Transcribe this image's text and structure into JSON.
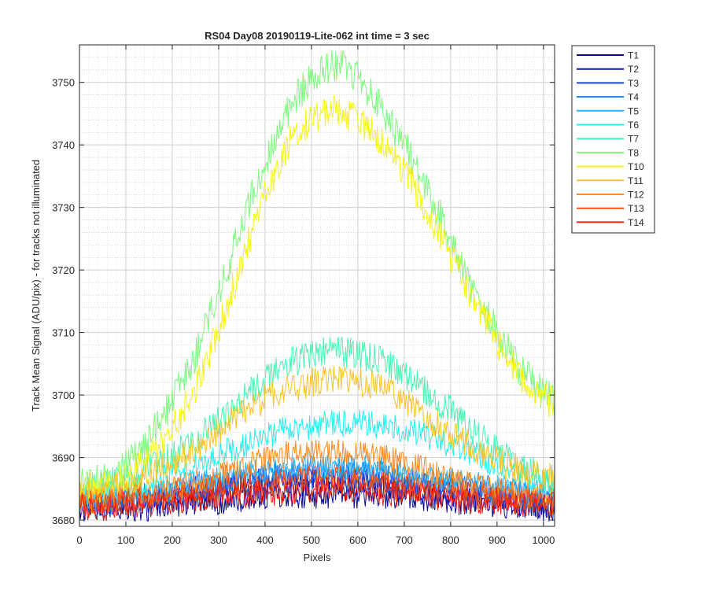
{
  "chart_data": {
    "type": "line",
    "title": "RS04 Day08 20190119-Lite-062 int time = 3 sec",
    "xlabel": "Pixels",
    "ylabel": "Track Mean Signal (ADU/pix) - for tracks not illuminated",
    "xlim": [
      0,
      1024
    ],
    "ylim": [
      3679,
      3756
    ],
    "x_ticks": [
      "0",
      "100",
      "200",
      "300",
      "400",
      "500",
      "600",
      "700",
      "800",
      "900",
      "1000"
    ],
    "y_ticks": [
      "3680",
      "3690",
      "3700",
      "3710",
      "3720",
      "3730",
      "3740",
      "3750"
    ],
    "grid": "major and minor, dotted",
    "legend_position": "outside top-right",
    "x": [
      0,
      50,
      100,
      150,
      200,
      250,
      300,
      350,
      400,
      450,
      500,
      550,
      600,
      650,
      700,
      750,
      800,
      850,
      900,
      950,
      1000,
      1024
    ],
    "series": [
      {
        "name": "T1",
        "color": "#0a0a8c",
        "noise": 2.2,
        "values": [
          3682,
          3682,
          3682,
          3682,
          3682.5,
          3683,
          3683,
          3683.5,
          3684,
          3684,
          3684,
          3684,
          3684,
          3684,
          3683.5,
          3683.5,
          3683,
          3683,
          3682.5,
          3682.5,
          3682,
          3682
        ]
      },
      {
        "name": "T2",
        "color": "#0d1ab4",
        "noise": 2.2,
        "values": [
          3682,
          3682,
          3682.5,
          3683,
          3683.5,
          3684,
          3684.5,
          3685,
          3685.5,
          3686,
          3686,
          3686,
          3686,
          3685.5,
          3685,
          3684.5,
          3684,
          3683.5,
          3683,
          3682.5,
          3682,
          3682
        ]
      },
      {
        "name": "T3",
        "color": "#1446dc",
        "noise": 2.0,
        "values": [
          3682.5,
          3682.5,
          3683,
          3683.5,
          3684,
          3685,
          3685.5,
          3686,
          3686.5,
          3687,
          3687,
          3687,
          3687,
          3686.5,
          3686,
          3685.5,
          3685,
          3684.5,
          3684,
          3683.5,
          3683,
          3683
        ]
      },
      {
        "name": "T4",
        "color": "#1e82f0",
        "noise": 2.0,
        "values": [
          3683,
          3683,
          3683.5,
          3684,
          3685,
          3685.5,
          3686,
          3687,
          3687.5,
          3688,
          3688,
          3688,
          3688,
          3687.5,
          3687,
          3686.5,
          3686,
          3685.5,
          3685,
          3684.5,
          3684,
          3684
        ]
      },
      {
        "name": "T5",
        "color": "#23b4fa",
        "noise": 2.0,
        "values": [
          3683,
          3683,
          3683.5,
          3684,
          3685,
          3686,
          3686.5,
          3687.5,
          3688,
          3688.5,
          3688.5,
          3688.5,
          3688.5,
          3688,
          3687.5,
          3687,
          3686.5,
          3686,
          3685.5,
          3685,
          3684.5,
          3684.5
        ]
      },
      {
        "name": "T6",
        "color": "#23f0f0",
        "noise": 2.2,
        "values": [
          3684,
          3684,
          3685,
          3686,
          3687.5,
          3689,
          3690.5,
          3692,
          3693.5,
          3694.5,
          3695,
          3695.5,
          3695.5,
          3695,
          3694.5,
          3693.5,
          3692,
          3690.5,
          3689,
          3687.5,
          3686.5,
          3686
        ]
      },
      {
        "name": "T7",
        "color": "#46f5b4",
        "noise": 2.5,
        "values": [
          3685,
          3685.5,
          3686.5,
          3688,
          3690.5,
          3693,
          3696,
          3699.5,
          3702.5,
          3705,
          3706.5,
          3707,
          3706.5,
          3705.5,
          3703.5,
          3700.5,
          3697.5,
          3694,
          3691,
          3688.5,
          3687,
          3686.5
        ]
      },
      {
        "name": "T8",
        "color": "#7dfa7d",
        "noise": 2.8,
        "values": [
          3686,
          3686.5,
          3688.5,
          3693,
          3699,
          3706.5,
          3716,
          3727,
          3737.5,
          3745.5,
          3751,
          3753,
          3751,
          3746,
          3740,
          3733,
          3725,
          3716.5,
          3710,
          3704,
          3700,
          3699
        ]
      },
      {
        "name": "T10",
        "color": "#f5f514",
        "noise": 2.6,
        "values": [
          3685,
          3685.5,
          3686.5,
          3689.5,
          3694.5,
          3701,
          3710.5,
          3721.5,
          3732,
          3740,
          3744.5,
          3745.5,
          3744,
          3740.5,
          3735.5,
          3729.5,
          3722.5,
          3715,
          3708.5,
          3703,
          3699.5,
          3698.5
        ]
      },
      {
        "name": "T11",
        "color": "#fac328",
        "noise": 2.4,
        "values": [
          3684,
          3684.5,
          3685.5,
          3687,
          3689,
          3691.5,
          3694,
          3697,
          3699.5,
          3701,
          3702,
          3702.5,
          3702,
          3701,
          3699,
          3696.5,
          3694,
          3691.5,
          3689.5,
          3688,
          3687,
          3686.5
        ]
      },
      {
        "name": "T12",
        "color": "#fa8c23",
        "noise": 2.2,
        "values": [
          3683,
          3683,
          3683.5,
          3684,
          3685,
          3686,
          3687,
          3688.5,
          3689.5,
          3690.5,
          3691,
          3691,
          3690.5,
          3690,
          3689,
          3688,
          3686.5,
          3685.5,
          3684.5,
          3684,
          3683.5,
          3683.5
        ]
      },
      {
        "name": "T13",
        "color": "#f55014",
        "noise": 2.2,
        "values": [
          3682.5,
          3682.5,
          3683,
          3683.5,
          3684,
          3684.5,
          3685,
          3685.5,
          3686,
          3686.5,
          3686.5,
          3686.5,
          3686.5,
          3686,
          3685.5,
          3685,
          3684.5,
          3684,
          3683.5,
          3683,
          3683,
          3683
        ]
      },
      {
        "name": "T14",
        "color": "#f01e14",
        "noise": 2.2,
        "values": [
          3682,
          3682,
          3682.5,
          3682.5,
          3683,
          3683.5,
          3684,
          3684,
          3684.5,
          3684.5,
          3685,
          3685,
          3685,
          3684.5,
          3684,
          3684,
          3683.5,
          3683,
          3683,
          3682.5,
          3682.5,
          3682.5
        ]
      }
    ]
  }
}
